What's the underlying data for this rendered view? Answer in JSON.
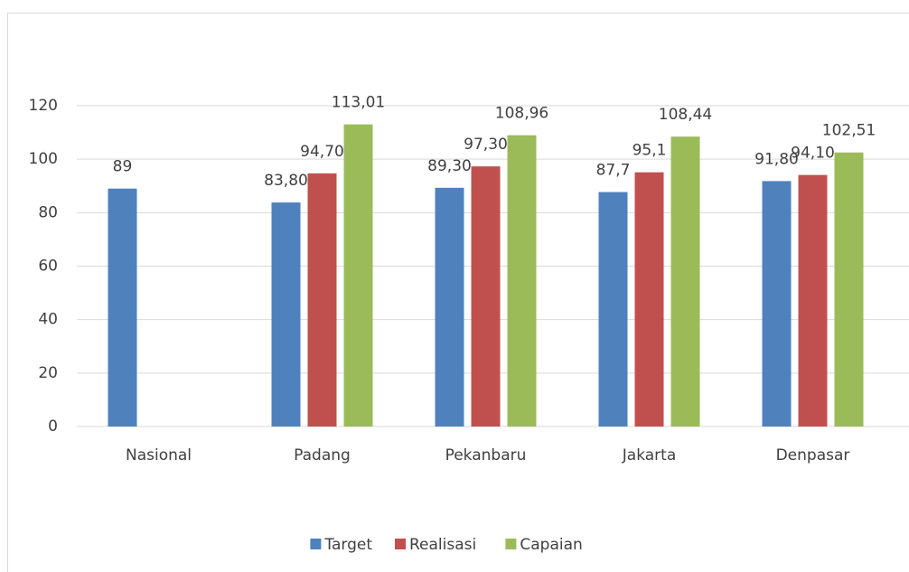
{
  "chart_data": {
    "type": "bar",
    "categories": [
      "Nasional",
      "Padang",
      "Pekanbaru",
      "Jakarta",
      "Denpasar"
    ],
    "series": [
      {
        "name": "Target",
        "color": "#4f81bd",
        "values": [
          89,
          83.8,
          89.3,
          87.7,
          91.8
        ],
        "value_labels": [
          "89",
          "83,80",
          "89,30",
          "87,7",
          "91,80"
        ]
      },
      {
        "name": "Realisasi",
        "color": "#c0504d",
        "values": [
          null,
          94.7,
          97.3,
          95.1,
          94.1
        ],
        "value_labels": [
          null,
          "94,70",
          "97,30",
          "95,1",
          "94,10"
        ]
      },
      {
        "name": "Capaian",
        "color": "#9bbb59",
        "values": [
          null,
          113.01,
          108.96,
          108.44,
          102.51
        ],
        "value_labels": [
          null,
          "113,01",
          "108,96",
          "108,44",
          "102,51"
        ]
      }
    ],
    "ylim": [
      0,
      120
    ],
    "yticks": [
      0,
      20,
      40,
      60,
      80,
      100,
      120
    ],
    "grid": true,
    "legend": "bottom"
  }
}
